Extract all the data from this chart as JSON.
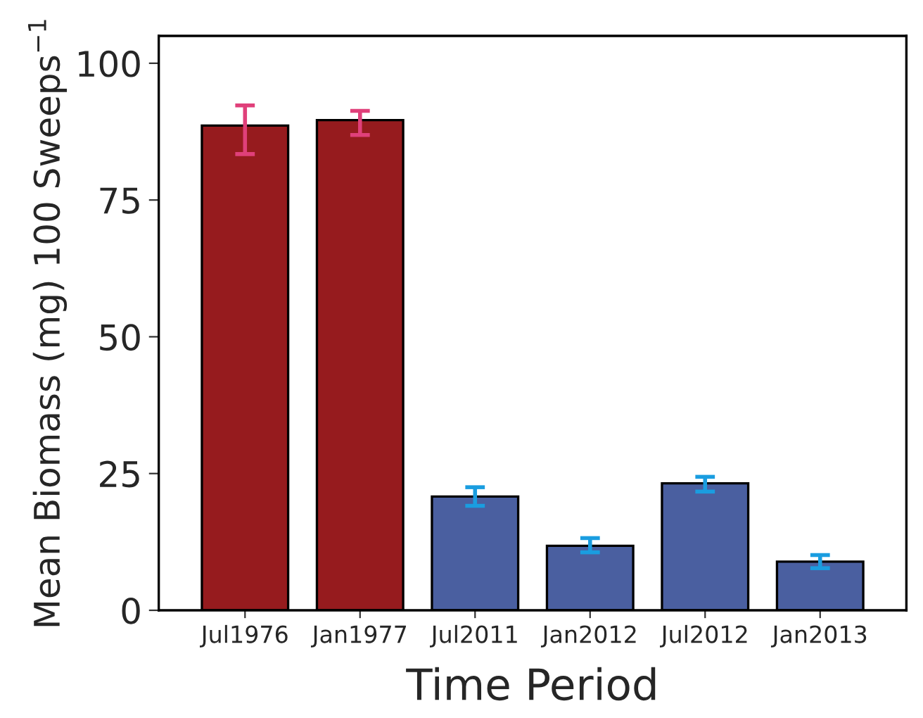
{
  "chart_data": {
    "type": "bar",
    "xlabel": "Time Period",
    "ylabel": "Mean Biomass (mg) 100 Sweeps$^{−1}$",
    "categories": [
      "Jul1976",
      "Jan1977",
      "Jul2011",
      "Jan2012",
      "Jul2012",
      "Jan2013"
    ],
    "values": [
      88.6,
      89.6,
      20.8,
      11.8,
      23.2,
      8.9
    ],
    "errors": [
      [
        83.4,
        92.3
      ],
      [
        86.9,
        91.3
      ],
      [
        19.1,
        22.5
      ],
      [
        10.6,
        13.2
      ],
      [
        21.7,
        24.4
      ],
      [
        7.7,
        10.1
      ]
    ],
    "colors": [
      "#961b1e",
      "#961b1e",
      "#4a5fa0",
      "#4a5fa0",
      "#4a5fa0",
      "#4a5fa0"
    ],
    "ylim": [
      0,
      105
    ],
    "yticks": [
      0,
      25,
      50,
      75,
      100
    ],
    "grid": false
  }
}
